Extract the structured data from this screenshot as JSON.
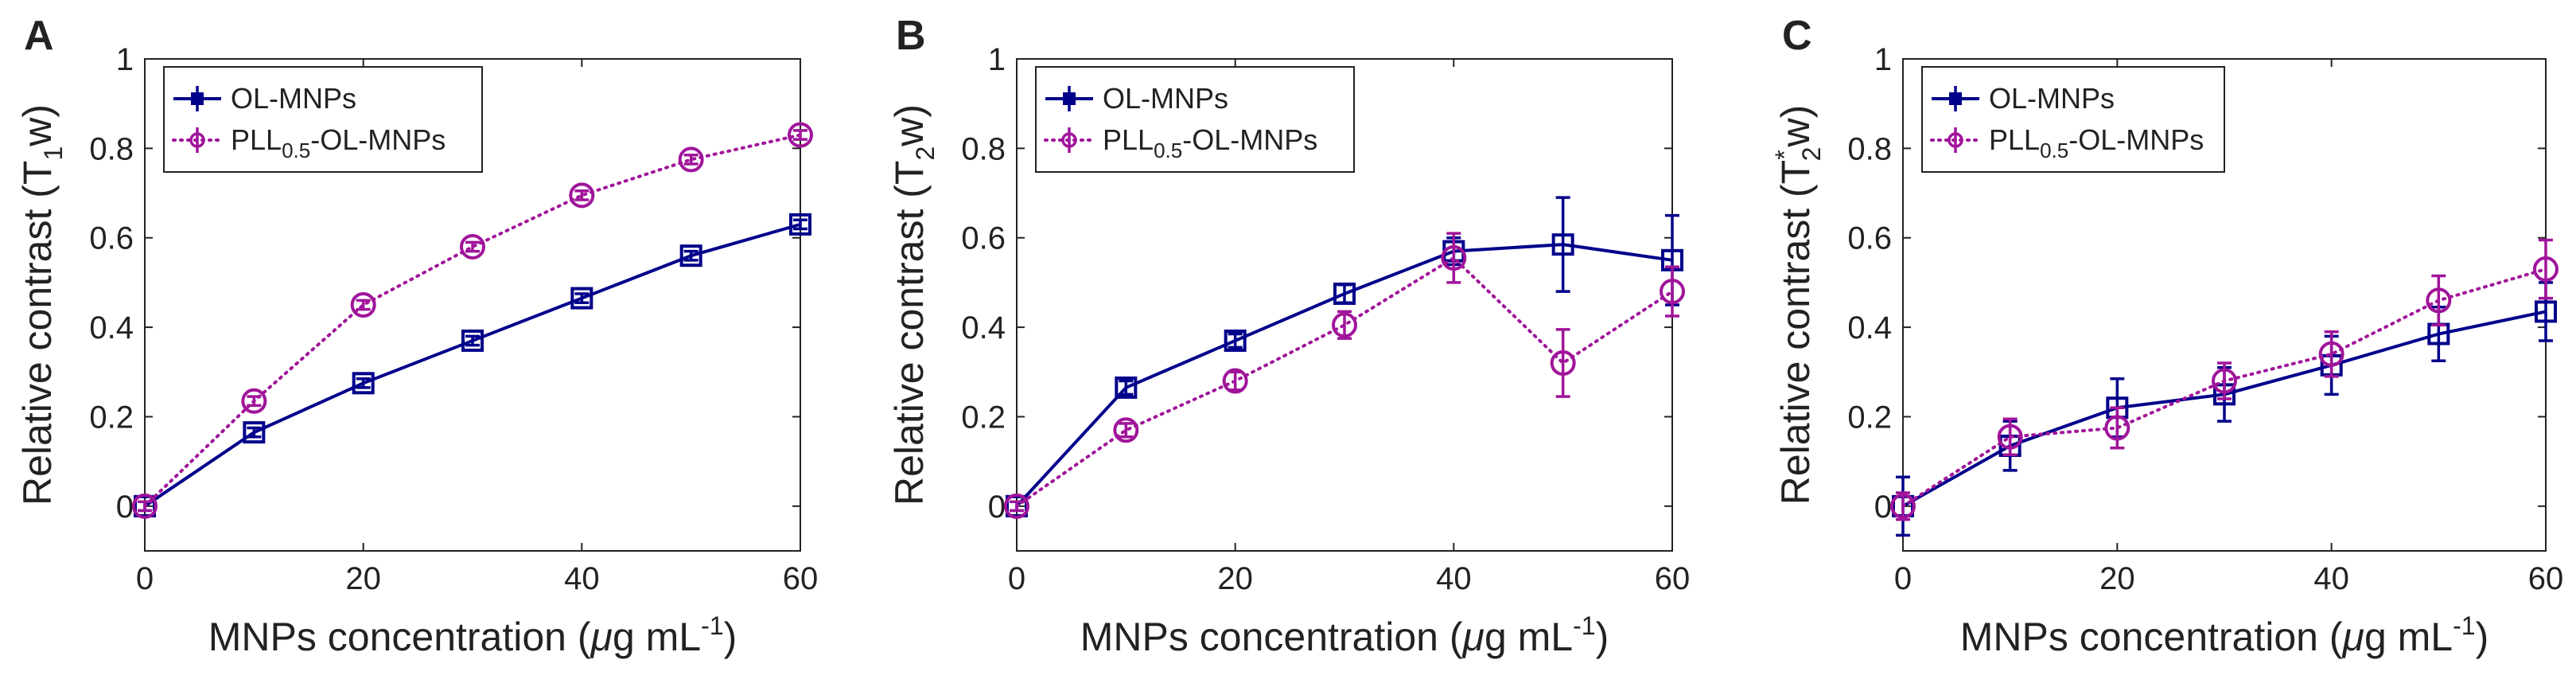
{
  "colors": {
    "series_a": "#00008b",
    "series_b": "#a0149a",
    "axis": "#222222"
  },
  "chart_data": [
    {
      "type": "line",
      "panel_label": "A",
      "ylabel": {
        "prefix": "Relative contrast (T",
        "sub": "1",
        "sup": "",
        "suffix": "w)"
      },
      "xlabel": {
        "prefix": "MNPs concentration (",
        "mu": "μ",
        "unit": "g mL",
        "sup": "-1",
        "suffix": ")"
      },
      "xlim": [
        0,
        60
      ],
      "ylim": [
        -0.1,
        1
      ],
      "xticks": [
        "0",
        "20",
        "40",
        "60"
      ],
      "yticks": [
        "0",
        "0.2",
        "0.4",
        "0.6",
        "0.8",
        "1"
      ],
      "x": [
        0,
        10,
        20,
        30,
        40,
        50,
        60
      ],
      "series": [
        {
          "name": "OL-MNPs",
          "legend": {
            "prefix": "OL-MNPs",
            "sub": "",
            "suffix": ""
          },
          "style": "solid",
          "marker": "square",
          "values": [
            0.0,
            0.165,
            0.275,
            0.37,
            0.465,
            0.56,
            0.63
          ],
          "errors": [
            0.01,
            0.01,
            0.01,
            0.01,
            0.01,
            0.01,
            0.01
          ]
        },
        {
          "name": "PLL0.5-OL-MNPs",
          "legend": {
            "prefix": "PLL",
            "sub": "0.5",
            "suffix": "-OL-MNPs"
          },
          "style": "dotted",
          "marker": "circle",
          "values": [
            0.0,
            0.235,
            0.45,
            0.58,
            0.695,
            0.775,
            0.83
          ],
          "errors": [
            0.01,
            0.01,
            0.01,
            0.01,
            0.01,
            0.01,
            0.01
          ]
        }
      ]
    },
    {
      "type": "line",
      "panel_label": "B",
      "ylabel": {
        "prefix": "Relative contrast (T",
        "sub": "2",
        "sup": "",
        "suffix": "w)"
      },
      "xlabel": {
        "prefix": "MNPs concentration (",
        "mu": "μ",
        "unit": "g mL",
        "sup": "-1",
        "suffix": ")"
      },
      "xlim": [
        0,
        60
      ],
      "ylim": [
        -0.1,
        1
      ],
      "xticks": [
        "0",
        "20",
        "40",
        "60"
      ],
      "yticks": [
        "0",
        "0.2",
        "0.4",
        "0.6",
        "0.8",
        "1"
      ],
      "x": [
        0,
        10,
        20,
        30,
        40,
        50,
        60
      ],
      "series": [
        {
          "name": "OL-MNPs",
          "legend": {
            "prefix": "OL-MNPs",
            "sub": "",
            "suffix": ""
          },
          "style": "solid",
          "marker": "square",
          "values": [
            0.0,
            0.265,
            0.37,
            0.475,
            0.57,
            0.585,
            0.55
          ],
          "errors": [
            0.01,
            0.015,
            0.015,
            0.02,
            0.03,
            0.105,
            0.1
          ]
        },
        {
          "name": "PLL0.5-OL-MNPs",
          "legend": {
            "prefix": "PLL",
            "sub": "0.5",
            "suffix": "-OL-MNPs"
          },
          "style": "dotted",
          "marker": "circle",
          "values": [
            0.0,
            0.17,
            0.28,
            0.405,
            0.555,
            0.32,
            0.48
          ],
          "errors": [
            0.01,
            0.015,
            0.02,
            0.03,
            0.055,
            0.075,
            0.055
          ]
        }
      ]
    },
    {
      "type": "line",
      "panel_label": "C",
      "ylabel": {
        "prefix": "Relative contrast (T",
        "sub": "2",
        "sup": "*",
        "suffix": "w)"
      },
      "xlabel": {
        "prefix": "MNPs concentration (",
        "mu": "μ",
        "unit": "g mL",
        "sup": "-1",
        "suffix": ")"
      },
      "xlim": [
        0,
        60
      ],
      "ylim": [
        -0.1,
        1
      ],
      "xticks": [
        "0",
        "20",
        "40",
        "60"
      ],
      "yticks": [
        "0",
        "0.2",
        "0.4",
        "0.6",
        "0.8",
        "1"
      ],
      "x": [
        0,
        10,
        20,
        30,
        40,
        50,
        60
      ],
      "series": [
        {
          "name": "OL-MNPs",
          "legend": {
            "prefix": "OL-MNPs",
            "sub": "",
            "suffix": ""
          },
          "style": "solid",
          "marker": "square",
          "values": [
            0.0,
            0.135,
            0.22,
            0.25,
            0.315,
            0.385,
            0.435
          ],
          "errors": [
            0.065,
            0.055,
            0.065,
            0.06,
            0.065,
            0.06,
            0.065
          ]
        },
        {
          "name": "PLL0.5-OL-MNPs",
          "legend": {
            "prefix": "PLL",
            "sub": "0.5",
            "suffix": "-OL-MNPs"
          },
          "style": "dotted",
          "marker": "circle",
          "values": [
            0.0,
            0.155,
            0.175,
            0.28,
            0.34,
            0.46,
            0.53
          ],
          "errors": [
            0.03,
            0.04,
            0.045,
            0.04,
            0.05,
            0.055,
            0.065
          ]
        }
      ]
    }
  ]
}
